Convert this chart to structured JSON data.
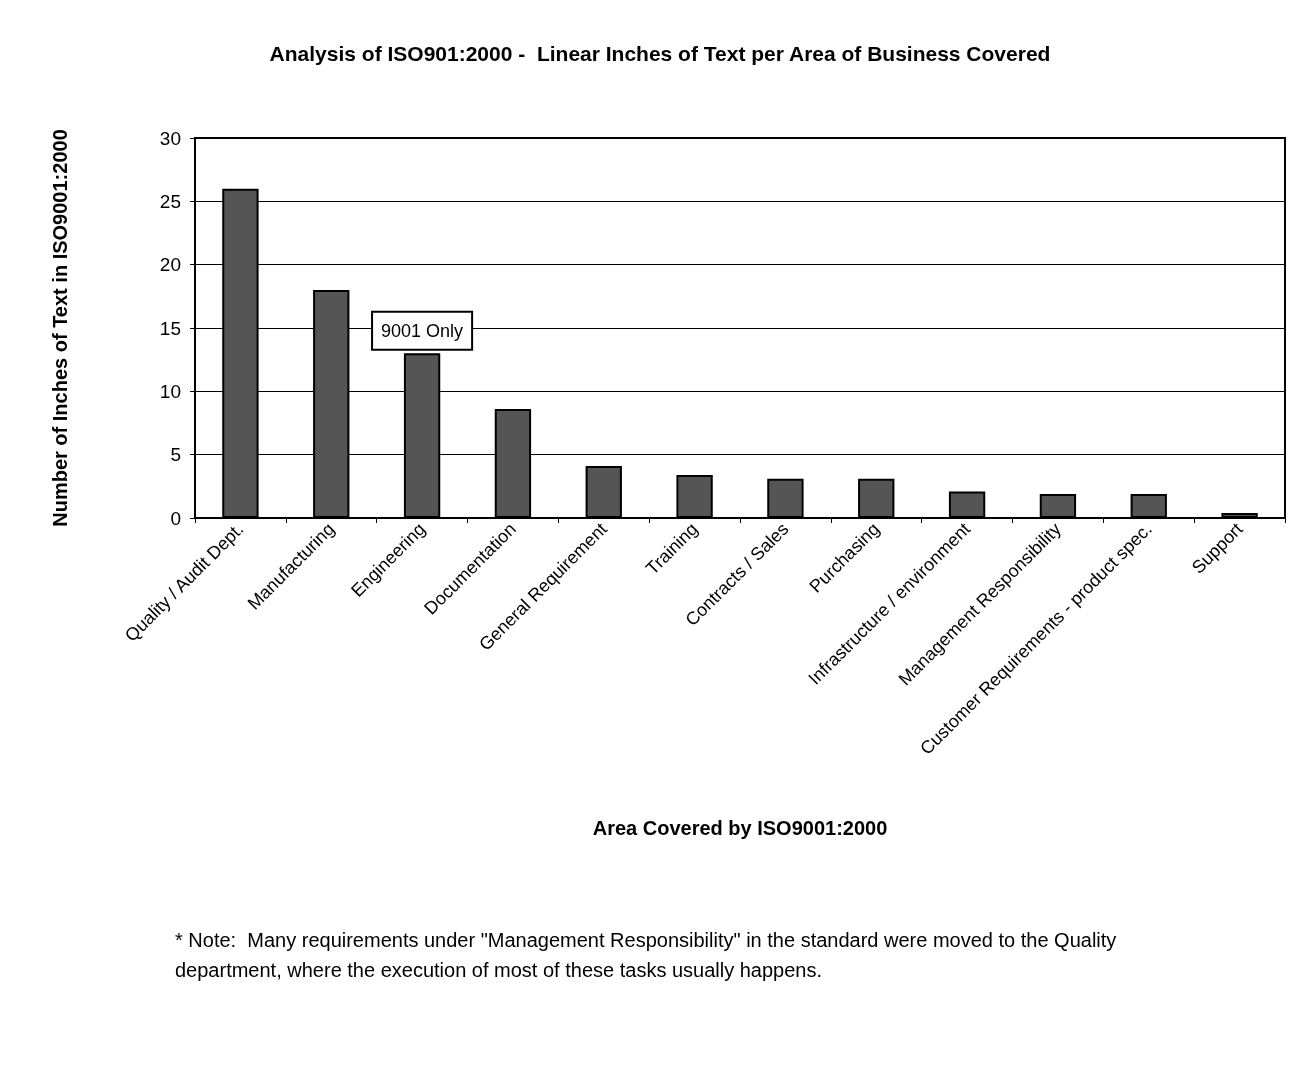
{
  "chart_data": {
    "type": "bar",
    "title": "Analysis of ISO901:2000 -  Linear Inches of Text per Area of Business Covered",
    "xlabel": "Area Covered by ISO9001:2000",
    "ylabel": "Number of Inches of Text in ISO9001:2000",
    "categories": [
      "Quality / Audit Dept.",
      "Manufacturing",
      "Engineering",
      "Documentation",
      "General Requirement",
      "Training",
      "Contracts / Sales",
      "Purchasing",
      "Infrastructure / environment",
      "Management Responsibility",
      "Customer Requirements - product spec.",
      "Support"
    ],
    "values": [
      26,
      18,
      13,
      8.6,
      4.1,
      3.4,
      3.1,
      3.1,
      2.1,
      1.9,
      1.9,
      0.4
    ],
    "color": "#555555",
    "ylim": [
      0,
      30
    ],
    "yticks": [
      0,
      5,
      10,
      15,
      20,
      25,
      30
    ],
    "grid": "y",
    "annotations": [
      {
        "text": "9001 Only",
        "x": "Engineering",
        "y": 13
      },
      "* Note:  Many requirements under \"Management Responsibility\" in the standard were moved to the Quality department, where the execution of most of these tasks usually happens."
    ]
  }
}
